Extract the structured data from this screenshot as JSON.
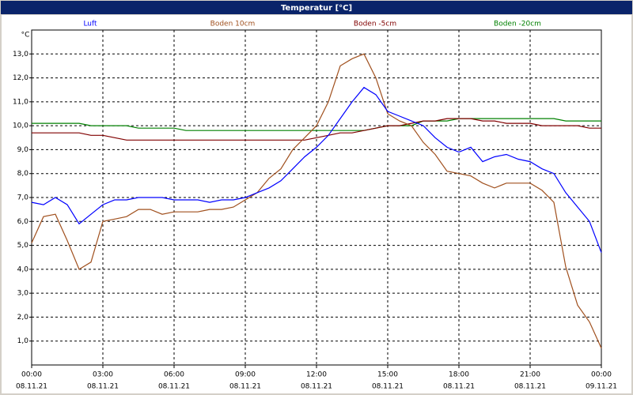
{
  "chart_data": {
    "type": "line",
    "title": "Temperatur [°C]",
    "y_label": "°C",
    "x": [
      0,
      0.5,
      1,
      1.5,
      2,
      2.5,
      3,
      3.5,
      4,
      4.5,
      5,
      5.5,
      6,
      6.5,
      7,
      7.5,
      8,
      8.5,
      9,
      9.5,
      10,
      10.5,
      11,
      11.5,
      12,
      12.5,
      13,
      13.5,
      14,
      14.5,
      15,
      15.5,
      16,
      16.5,
      17,
      17.5,
      18,
      18.5,
      19,
      19.5,
      20,
      20.5,
      21,
      21.5,
      22,
      22.5,
      23,
      23.5,
      24
    ],
    "series": [
      {
        "name": "Luft",
        "color": "#0000ff",
        "values": [
          6.8,
          6.7,
          7.0,
          6.7,
          5.9,
          6.3,
          6.7,
          6.9,
          6.9,
          7.0,
          7.0,
          7.0,
          6.9,
          6.9,
          6.9,
          6.8,
          6.9,
          6.9,
          7.0,
          7.2,
          7.4,
          7.7,
          8.2,
          8.7,
          9.1,
          9.6,
          10.3,
          11.0,
          11.6,
          11.3,
          10.6,
          10.4,
          10.2,
          10.0,
          9.5,
          9.1,
          8.9,
          9.1,
          8.5,
          8.7,
          8.8,
          8.6,
          8.5,
          8.2,
          8.0,
          7.2,
          6.6,
          6.0,
          4.7
        ]
      },
      {
        "name": "Boden 10cm",
        "color": "#a0501e",
        "values": [
          5.1,
          6.2,
          6.3,
          5.2,
          4.0,
          4.3,
          6.0,
          6.1,
          6.2,
          6.5,
          6.5,
          6.3,
          6.4,
          6.4,
          6.4,
          6.5,
          6.5,
          6.6,
          6.9,
          7.2,
          7.8,
          8.2,
          9.0,
          9.5,
          10.0,
          11.0,
          12.5,
          12.8,
          13.0,
          12.0,
          10.5,
          10.2,
          10.0,
          9.3,
          8.8,
          8.1,
          8.0,
          7.9,
          7.6,
          7.4,
          7.6,
          7.6,
          7.6,
          7.3,
          6.8,
          4.1,
          2.5,
          1.8,
          0.7
        ]
      },
      {
        "name": "Boden -5cm",
        "color": "#800000",
        "values": [
          9.7,
          9.7,
          9.7,
          9.7,
          9.7,
          9.6,
          9.6,
          9.5,
          9.4,
          9.4,
          9.4,
          9.4,
          9.4,
          9.4,
          9.4,
          9.4,
          9.4,
          9.4,
          9.4,
          9.4,
          9.4,
          9.4,
          9.4,
          9.4,
          9.5,
          9.6,
          9.7,
          9.7,
          9.8,
          9.9,
          10.0,
          10.0,
          10.1,
          10.2,
          10.2,
          10.3,
          10.3,
          10.3,
          10.2,
          10.2,
          10.1,
          10.1,
          10.1,
          10.0,
          10.0,
          10.0,
          10.0,
          9.9,
          9.9
        ]
      },
      {
        "name": "Boden -20cm",
        "color": "#008000",
        "values": [
          10.1,
          10.1,
          10.1,
          10.1,
          10.1,
          10.0,
          10.0,
          10.0,
          10.0,
          9.9,
          9.9,
          9.9,
          9.9,
          9.8,
          9.8,
          9.8,
          9.8,
          9.8,
          9.8,
          9.8,
          9.8,
          9.8,
          9.8,
          9.8,
          9.8,
          9.8,
          9.8,
          9.8,
          9.8,
          9.9,
          10.0,
          10.0,
          10.0,
          10.2,
          10.2,
          10.2,
          10.3,
          10.3,
          10.3,
          10.3,
          10.3,
          10.3,
          10.3,
          10.3,
          10.3,
          10.2,
          10.2,
          10.2,
          10.2
        ]
      }
    ],
    "xlim": [
      0,
      24
    ],
    "xticks": [
      {
        "value": 0,
        "label": "00:00"
      },
      {
        "value": 3,
        "label": "03:00"
      },
      {
        "value": 6,
        "label": "06:00"
      },
      {
        "value": 9,
        "label": "09:00"
      },
      {
        "value": 12,
        "label": "12:00"
      },
      {
        "value": 15,
        "label": "15:00"
      },
      {
        "value": 18,
        "label": "18:00"
      },
      {
        "value": 21,
        "label": "21:00"
      },
      {
        "value": 24,
        "label": "00:00"
      }
    ],
    "xtick_dates": [
      "08.11.21",
      "08.11.21",
      "08.11.21",
      "08.11.21",
      "08.11.21",
      "08.11.21",
      "08.11.21",
      "08.11.21",
      "09.11.21"
    ],
    "ylim": [
      0,
      14
    ],
    "yticks": [
      {
        "value": 1,
        "label": "1,0"
      },
      {
        "value": 2,
        "label": "2,0"
      },
      {
        "value": 3,
        "label": "3,0"
      },
      {
        "value": 4,
        "label": "4,0"
      },
      {
        "value": 5,
        "label": "5,0"
      },
      {
        "value": 6,
        "label": "6,0"
      },
      {
        "value": 7,
        "label": "7,0"
      },
      {
        "value": 8,
        "label": "8,0"
      },
      {
        "value": 9,
        "label": "9,0"
      },
      {
        "value": 10,
        "label": "10,0"
      },
      {
        "value": 11,
        "label": "11,0"
      },
      {
        "value": 12,
        "label": "12,0"
      },
      {
        "value": 13,
        "label": "13,0"
      }
    ],
    "grid": true
  }
}
